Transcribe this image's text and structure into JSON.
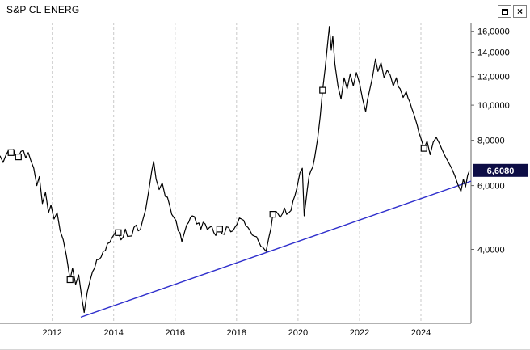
{
  "window": {
    "controls": {
      "restore_icon": "restore",
      "close_icon": "×"
    }
  },
  "chart_data": {
    "type": "line",
    "title": "S&P CL ENERG",
    "y_scale": "log",
    "grid": "vertical-dashed",
    "xlim": [
      2010.3,
      2025.63
    ],
    "ylim": [
      2.5,
      16.9
    ],
    "x_ticks": [
      {
        "year": 2012,
        "label": "2012"
      },
      {
        "year": 2014,
        "label": "2014"
      },
      {
        "year": 2016,
        "label": "2016"
      },
      {
        "year": 2018,
        "label": "2018"
      },
      {
        "year": 2020,
        "label": "2020"
      },
      {
        "year": 2022,
        "label": "2022"
      },
      {
        "year": 2024,
        "label": "2024"
      }
    ],
    "y_ticks": [
      {
        "value": 16,
        "label": "16,0000"
      },
      {
        "value": 14,
        "label": "14,0000"
      },
      {
        "value": 12,
        "label": "12,0000"
      },
      {
        "value": 10,
        "label": "10,0000"
      },
      {
        "value": 8,
        "label": "8,0000"
      },
      {
        "value": 6,
        "label": "6,0000"
      },
      {
        "value": 4,
        "label": "4,0000"
      }
    ],
    "last_price": {
      "value": 6.608,
      "label": "6,6080"
    },
    "colors": {
      "series": "#000000",
      "trendline": "#2e2ecc",
      "grid": "#c9c9c9",
      "axis": "#666666",
      "text": "#000000",
      "badge_bg": "#0d0d45",
      "badge_text": "#ffffff"
    },
    "trendline": {
      "color": "#2e2ecc",
      "points": [
        [
          2012.93,
          2.6
        ],
        [
          2025.63,
          6.17
        ]
      ]
    },
    "markers": {
      "shape": "square",
      "points": [
        [
          2010.66,
          7.4
        ],
        [
          2010.9,
          7.2
        ],
        [
          2012.58,
          3.3
        ],
        [
          2014.15,
          4.45
        ],
        [
          2017.45,
          4.55
        ],
        [
          2019.18,
          5.0
        ],
        [
          2020.8,
          11.0
        ],
        [
          2024.1,
          7.6
        ]
      ]
    },
    "series": [
      {
        "name": "S&P CL ENERG",
        "color": "#000000",
        "points": [
          [
            2010.3,
            7.25
          ],
          [
            2010.4,
            6.95
          ],
          [
            2010.5,
            7.3
          ],
          [
            2010.58,
            7.5
          ],
          [
            2010.66,
            7.4
          ],
          [
            2010.74,
            7.55
          ],
          [
            2010.82,
            7.1
          ],
          [
            2010.9,
            7.2
          ],
          [
            2010.98,
            7.45
          ],
          [
            2011.06,
            7.5
          ],
          [
            2011.14,
            7.15
          ],
          [
            2011.22,
            7.4
          ],
          [
            2011.3,
            7.05
          ],
          [
            2011.4,
            6.7
          ],
          [
            2011.5,
            6.0
          ],
          [
            2011.58,
            6.35
          ],
          [
            2011.68,
            5.35
          ],
          [
            2011.78,
            5.75
          ],
          [
            2011.88,
            5.05
          ],
          [
            2011.96,
            5.3
          ],
          [
            2012.06,
            4.85
          ],
          [
            2012.16,
            5.05
          ],
          [
            2012.26,
            4.5
          ],
          [
            2012.36,
            4.25
          ],
          [
            2012.46,
            3.85
          ],
          [
            2012.58,
            3.3
          ],
          [
            2012.66,
            3.55
          ],
          [
            2012.76,
            3.2
          ],
          [
            2012.86,
            3.4
          ],
          [
            2012.96,
            2.95
          ],
          [
            2013.04,
            2.68
          ],
          [
            2013.14,
            3.05
          ],
          [
            2013.24,
            3.3
          ],
          [
            2013.38,
            3.55
          ],
          [
            2013.52,
            3.75
          ],
          [
            2013.66,
            3.95
          ],
          [
            2013.8,
            4.15
          ],
          [
            2013.94,
            4.3
          ],
          [
            2014.08,
            4.5
          ],
          [
            2014.15,
            4.45
          ],
          [
            2014.24,
            4.25
          ],
          [
            2014.38,
            4.55
          ],
          [
            2014.52,
            4.35
          ],
          [
            2014.66,
            4.6
          ],
          [
            2014.8,
            4.5
          ],
          [
            2014.94,
            4.8
          ],
          [
            2015.04,
            5.15
          ],
          [
            2015.14,
            5.8
          ],
          [
            2015.24,
            6.6
          ],
          [
            2015.3,
            7.0
          ],
          [
            2015.38,
            6.25
          ],
          [
            2015.48,
            5.85
          ],
          [
            2015.58,
            6.1
          ],
          [
            2015.68,
            5.6
          ],
          [
            2015.82,
            5.3
          ],
          [
            2015.96,
            4.9
          ],
          [
            2016.1,
            4.5
          ],
          [
            2016.22,
            4.2
          ],
          [
            2016.32,
            4.5
          ],
          [
            2016.44,
            4.75
          ],
          [
            2016.56,
            4.95
          ],
          [
            2016.7,
            4.7
          ],
          [
            2016.84,
            4.55
          ],
          [
            2016.98,
            4.7
          ],
          [
            2017.12,
            4.6
          ],
          [
            2017.26,
            4.45
          ],
          [
            2017.45,
            4.55
          ],
          [
            2017.6,
            4.4
          ],
          [
            2017.74,
            4.6
          ],
          [
            2017.88,
            4.5
          ],
          [
            2018.02,
            4.7
          ],
          [
            2018.16,
            4.85
          ],
          [
            2018.3,
            4.65
          ],
          [
            2018.44,
            4.5
          ],
          [
            2018.58,
            4.35
          ],
          [
            2018.72,
            4.2
          ],
          [
            2018.86,
            4.05
          ],
          [
            2018.96,
            3.95
          ],
          [
            2019.06,
            4.35
          ],
          [
            2019.18,
            5.0
          ],
          [
            2019.28,
            5.1
          ],
          [
            2019.42,
            4.9
          ],
          [
            2019.56,
            5.2
          ],
          [
            2019.7,
            5.05
          ],
          [
            2019.84,
            5.45
          ],
          [
            2019.96,
            5.9
          ],
          [
            2020.06,
            6.5
          ],
          [
            2020.14,
            6.7
          ],
          [
            2020.2,
            4.95
          ],
          [
            2020.3,
            5.85
          ],
          [
            2020.42,
            6.6
          ],
          [
            2020.54,
            7.15
          ],
          [
            2020.64,
            8.1
          ],
          [
            2020.72,
            9.3
          ],
          [
            2020.8,
            11.0
          ],
          [
            2020.88,
            12.6
          ],
          [
            2020.95,
            14.4
          ],
          [
            2021.02,
            16.5
          ],
          [
            2021.08,
            14.2
          ],
          [
            2021.13,
            15.5
          ],
          [
            2021.2,
            13.0
          ],
          [
            2021.3,
            11.3
          ],
          [
            2021.4,
            10.4
          ],
          [
            2021.5,
            11.9
          ],
          [
            2021.6,
            11.1
          ],
          [
            2021.7,
            12.2
          ],
          [
            2021.8,
            11.3
          ],
          [
            2021.9,
            12.3
          ],
          [
            2022.0,
            11.5
          ],
          [
            2022.1,
            10.4
          ],
          [
            2022.2,
            9.6
          ],
          [
            2022.32,
            10.9
          ],
          [
            2022.42,
            11.9
          ],
          [
            2022.52,
            13.4
          ],
          [
            2022.6,
            12.4
          ],
          [
            2022.7,
            13.1
          ],
          [
            2022.8,
            11.9
          ],
          [
            2022.9,
            12.5
          ],
          [
            2023.0,
            12.1
          ],
          [
            2023.1,
            11.3
          ],
          [
            2023.2,
            11.9
          ],
          [
            2023.32,
            11.1
          ],
          [
            2023.42,
            10.5
          ],
          [
            2023.52,
            10.9
          ],
          [
            2023.64,
            10.2
          ],
          [
            2023.76,
            9.5
          ],
          [
            2023.88,
            8.8
          ],
          [
            2024.0,
            8.1
          ],
          [
            2024.1,
            7.6
          ],
          [
            2024.2,
            7.95
          ],
          [
            2024.3,
            7.3
          ],
          [
            2024.4,
            7.9
          ],
          [
            2024.5,
            8.15
          ],
          [
            2024.6,
            7.85
          ],
          [
            2024.7,
            7.5
          ],
          [
            2024.8,
            7.2
          ],
          [
            2024.9,
            6.95
          ],
          [
            2025.0,
            6.7
          ],
          [
            2025.1,
            6.4
          ],
          [
            2025.2,
            6.05
          ],
          [
            2025.3,
            5.78
          ],
          [
            2025.38,
            6.25
          ],
          [
            2025.45,
            5.95
          ],
          [
            2025.52,
            6.4
          ],
          [
            2025.58,
            6.608
          ]
        ]
      }
    ]
  }
}
